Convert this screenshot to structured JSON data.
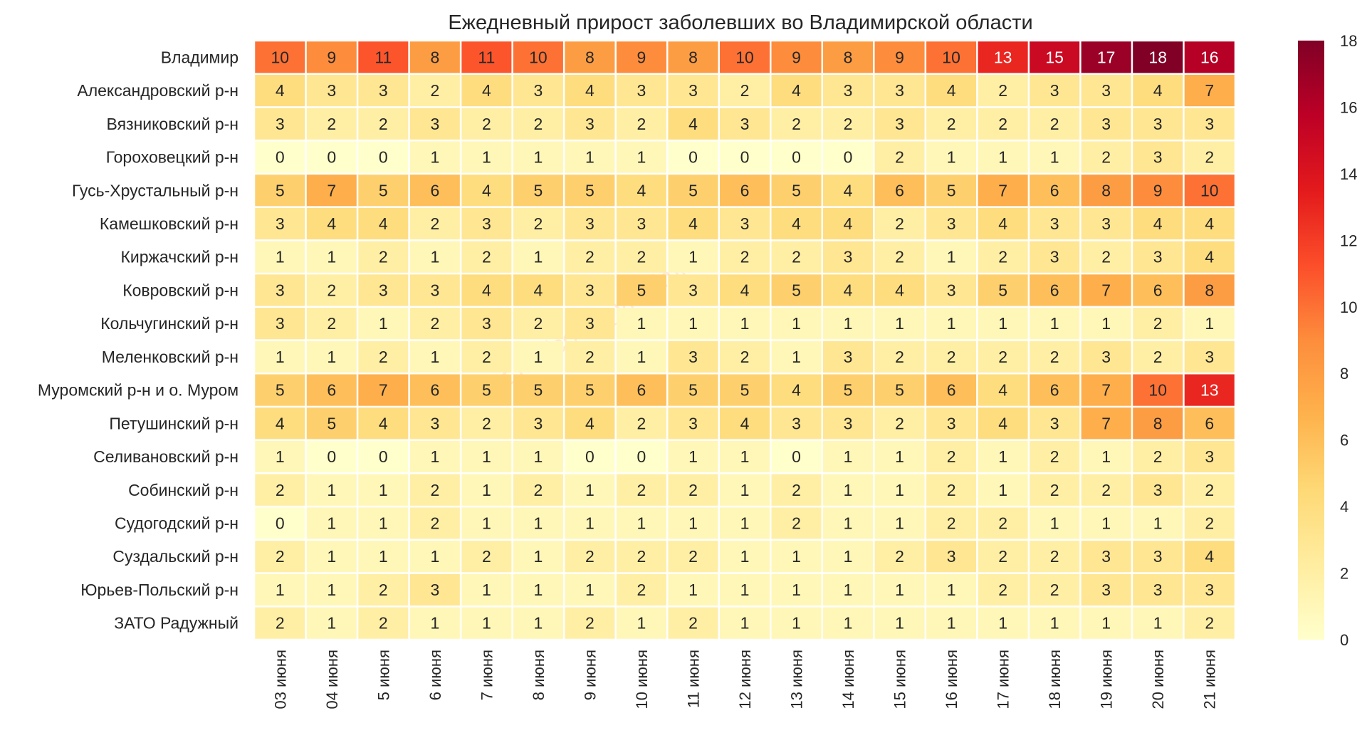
{
  "chart_data": {
    "type": "heatmap",
    "title": "Ежедневный прирост заболевших во Владимирской области",
    "xlabel": "",
    "ylabel": "",
    "watermark": "t.me/covid_vladimir",
    "columns": [
      "03 июня",
      "04 июня",
      "5 июня",
      "6 июня",
      "7 июня",
      "8 июня",
      "9 июня",
      "10 июня",
      "11 июня",
      "12 июня",
      "13 июня",
      "14 июня",
      "15 июня",
      "16 июня",
      "17 июня",
      "18 июня",
      "19 июня",
      "20 июня",
      "21 июня"
    ],
    "rows": [
      {
        "label": "Владимир",
        "values": [
          10,
          9,
          11,
          8,
          11,
          10,
          8,
          9,
          8,
          10,
          9,
          8,
          9,
          10,
          13,
          15,
          17,
          18,
          16
        ]
      },
      {
        "label": "Александровский р-н",
        "values": [
          4,
          3,
          3,
          2,
          4,
          3,
          4,
          3,
          3,
          2,
          4,
          3,
          3,
          4,
          2,
          3,
          3,
          4,
          7
        ]
      },
      {
        "label": "Вязниковский р-н",
        "values": [
          3,
          2,
          2,
          3,
          2,
          2,
          3,
          2,
          4,
          3,
          2,
          2,
          3,
          2,
          2,
          2,
          3,
          3,
          3
        ]
      },
      {
        "label": "Гороховецкий р-н",
        "values": [
          0,
          0,
          0,
          1,
          1,
          1,
          1,
          1,
          0,
          0,
          0,
          0,
          2,
          1,
          1,
          1,
          2,
          3,
          2
        ]
      },
      {
        "label": "Гусь-Хрустальный р-н",
        "values": [
          5,
          7,
          5,
          6,
          4,
          5,
          5,
          4,
          5,
          6,
          5,
          4,
          6,
          5,
          7,
          6,
          8,
          9,
          10
        ]
      },
      {
        "label": "Камешковский р-н",
        "values": [
          3,
          4,
          4,
          2,
          3,
          2,
          3,
          3,
          4,
          3,
          4,
          4,
          2,
          3,
          4,
          3,
          3,
          4,
          4
        ]
      },
      {
        "label": "Киржачский р-н",
        "values": [
          1,
          1,
          2,
          1,
          2,
          1,
          2,
          2,
          1,
          2,
          2,
          3,
          2,
          1,
          2,
          3,
          2,
          3,
          4
        ]
      },
      {
        "label": "Ковровский р-н",
        "values": [
          3,
          2,
          3,
          3,
          4,
          4,
          3,
          5,
          3,
          4,
          5,
          4,
          4,
          3,
          5,
          6,
          7,
          6,
          8
        ]
      },
      {
        "label": "Кольчугинский р-н",
        "values": [
          3,
          2,
          1,
          2,
          3,
          2,
          3,
          1,
          1,
          1,
          1,
          1,
          1,
          1,
          1,
          1,
          1,
          2,
          1
        ]
      },
      {
        "label": "Меленковский р-н",
        "values": [
          1,
          1,
          2,
          1,
          2,
          1,
          2,
          1,
          3,
          2,
          1,
          3,
          2,
          2,
          2,
          2,
          3,
          2,
          3
        ]
      },
      {
        "label": "Муромский р-н и о. Муром",
        "values": [
          5,
          6,
          7,
          6,
          5,
          5,
          5,
          6,
          5,
          5,
          4,
          5,
          5,
          6,
          4,
          6,
          7,
          10,
          13
        ]
      },
      {
        "label": "Петушинский р-н",
        "values": [
          4,
          5,
          4,
          3,
          2,
          3,
          4,
          2,
          3,
          4,
          3,
          3,
          2,
          3,
          4,
          3,
          7,
          8,
          6
        ]
      },
      {
        "label": "Селивановский р-н",
        "values": [
          1,
          0,
          0,
          1,
          1,
          1,
          0,
          0,
          1,
          1,
          0,
          1,
          1,
          2,
          1,
          2,
          1,
          2,
          3
        ]
      },
      {
        "label": "Собинский р-н",
        "values": [
          2,
          1,
          1,
          2,
          1,
          2,
          1,
          2,
          2,
          1,
          2,
          1,
          1,
          2,
          1,
          2,
          2,
          3,
          2
        ]
      },
      {
        "label": "Судогодский р-н",
        "values": [
          0,
          1,
          1,
          2,
          1,
          1,
          1,
          1,
          1,
          1,
          2,
          1,
          1,
          2,
          2,
          1,
          1,
          1,
          2
        ]
      },
      {
        "label": "Суздальский р-н",
        "values": [
          2,
          1,
          1,
          1,
          2,
          1,
          2,
          2,
          2,
          1,
          1,
          1,
          2,
          3,
          2,
          2,
          3,
          3,
          4
        ]
      },
      {
        "label": "Юрьев-Польский р-н",
        "values": [
          1,
          1,
          2,
          3,
          1,
          1,
          1,
          2,
          1,
          1,
          1,
          1,
          1,
          1,
          2,
          2,
          3,
          3,
          3
        ]
      },
      {
        "label": "ЗАТО Радужный",
        "values": [
          2,
          1,
          2,
          1,
          1,
          1,
          2,
          1,
          2,
          1,
          1,
          1,
          1,
          1,
          1,
          1,
          1,
          1,
          2
        ]
      }
    ],
    "colorbar": {
      "min": 0,
      "max": 18,
      "ticks": [
        0,
        2,
        4,
        6,
        8,
        10,
        12,
        14,
        16,
        18
      ],
      "colormap": "YlOrRd",
      "colors": [
        "#ffffcc",
        "#ffeda0",
        "#fed976",
        "#feb24c",
        "#fd8d3c",
        "#fc4e2a",
        "#e31a1c",
        "#bd0026",
        "#800026"
      ]
    }
  }
}
